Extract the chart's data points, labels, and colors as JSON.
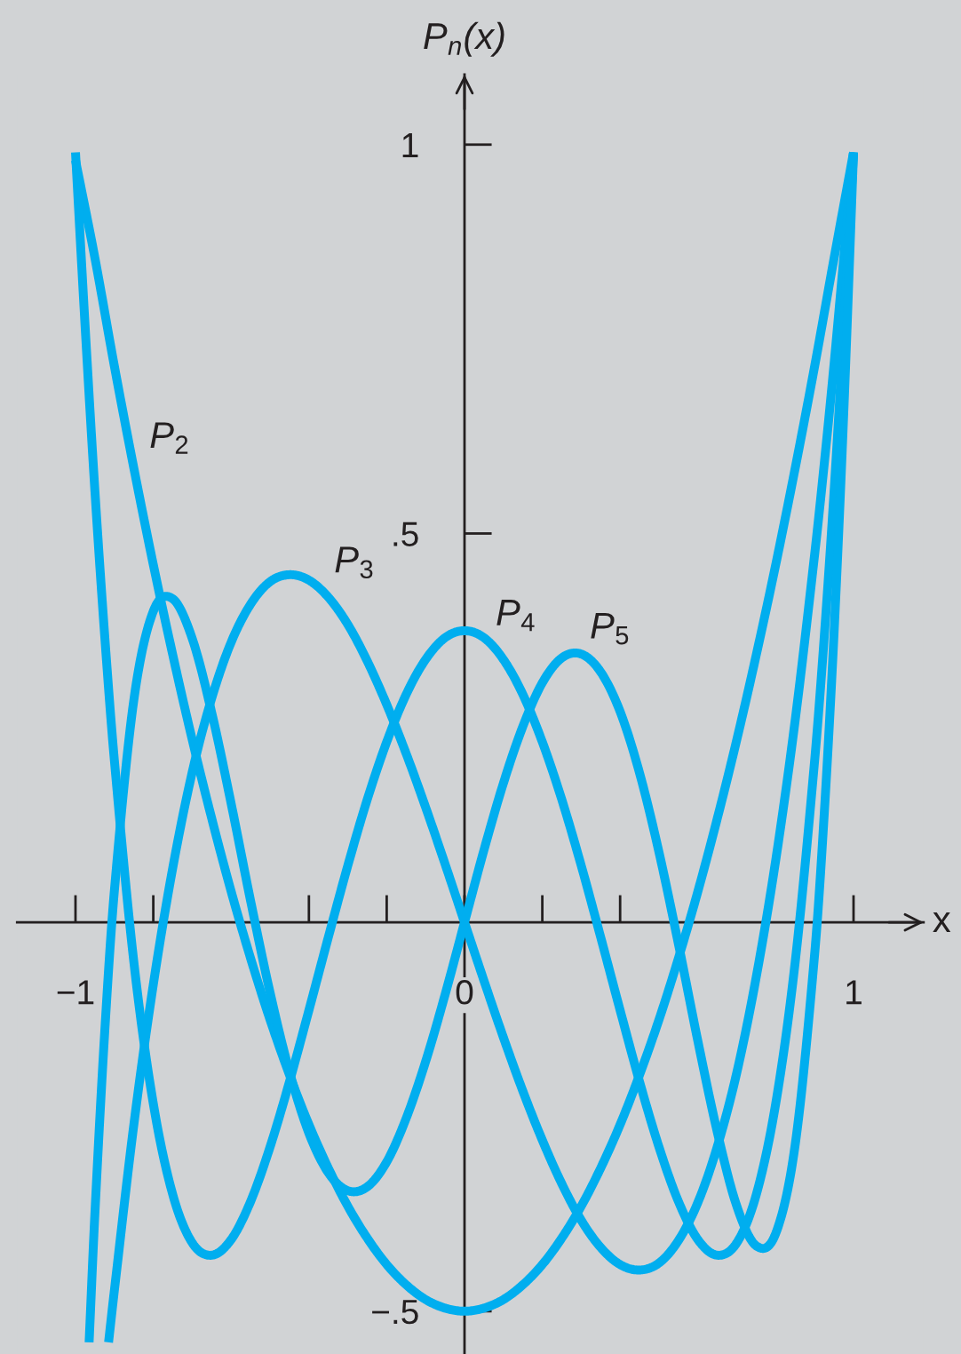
{
  "chart_data": {
    "type": "line",
    "xlabel": "x",
    "ylabel": "P$_{n}$(x)",
    "line_style": "solid",
    "xlim": [
      -1.15,
      1.18
    ],
    "ylim": [
      -0.555,
      1.09
    ],
    "xticks": [
      {
        "value": -1,
        "label": "−1"
      },
      {
        "value": -0.8,
        "label": null
      },
      {
        "value": -0.4,
        "label": null
      },
      {
        "value": -0.2,
        "label": null
      },
      0,
      {
        "value": 0.2,
        "label": null
      },
      {
        "value": 0.4,
        "label": null
      },
      1
    ],
    "yticks": [
      {
        "value": -0.5,
        "label": "−.5"
      },
      {
        "value": 0.5,
        "label": ".5"
      },
      1
    ],
    "series": [
      {
        "name": "P$_{2}$",
        "color": "#00aeef",
        "x": [
          -1,
          -0.95,
          -0.9,
          -0.85,
          -0.8,
          -0.75,
          -0.7,
          -0.65,
          -0.6,
          -0.55,
          -0.5,
          -0.45,
          -0.4,
          -0.35,
          -0.3,
          -0.25,
          -0.2,
          -0.15,
          -0.1,
          -0.05,
          0,
          0.05,
          0.1,
          0.15,
          0.2,
          0.25,
          0.3,
          0.35,
          0.4,
          0.45,
          0.5,
          0.55,
          0.6,
          0.65,
          0.7,
          0.75,
          0.8,
          0.85,
          0.9,
          0.95,
          1
        ],
        "values": [
          0.98,
          0.854,
          0.715,
          0.584,
          0.46,
          0.344,
          0.235,
          0.134,
          0.04,
          -0.046,
          -0.125,
          -0.196,
          -0.26,
          -0.316,
          -0.365,
          -0.406,
          -0.44,
          -0.466,
          -0.485,
          -0.496,
          -0.5,
          -0.496,
          -0.485,
          -0.466,
          -0.44,
          -0.406,
          -0.365,
          -0.316,
          -0.26,
          -0.196,
          -0.125,
          -0.046,
          0.04,
          0.134,
          0.235,
          0.344,
          0.46,
          0.584,
          0.715,
          0.854,
          0.99
        ]
      },
      {
        "name": "P$_{3}$",
        "color": "#00aeef",
        "x": [
          -0.915,
          -0.9,
          -0.85,
          -0.8,
          -0.75,
          -0.7,
          -0.65,
          -0.6,
          -0.55,
          -0.5,
          -0.45,
          -0.4,
          -0.35,
          -0.3,
          -0.25,
          -0.2,
          -0.15,
          -0.1,
          -0.05,
          0,
          0.05,
          0.1,
          0.15,
          0.2,
          0.25,
          0.3,
          0.35,
          0.4,
          0.45,
          0.5,
          0.55,
          0.6,
          0.65,
          0.7,
          0.75,
          0.8,
          0.85,
          0.9,
          0.925,
          0.95,
          0.975,
          1
        ],
        "values": [
          -0.54,
          -0.473,
          -0.26,
          -0.08,
          0.07,
          0.193,
          0.288,
          0.36,
          0.409,
          0.438,
          0.447,
          0.44,
          0.418,
          0.383,
          0.336,
          0.28,
          0.217,
          0.148,
          0.075,
          0,
          -0.075,
          -0.148,
          -0.217,
          -0.28,
          -0.336,
          -0.383,
          -0.418,
          -0.44,
          -0.447,
          -0.438,
          -0.409,
          -0.36,
          -0.288,
          -0.193,
          -0.07,
          0.08,
          0.26,
          0.473,
          0.591,
          0.718,
          0.855,
          0.99
        ]
      },
      {
        "name": "P$_{4}$",
        "color": "#00aeef",
        "x": [
          -1,
          -0.975,
          -0.95,
          -0.925,
          -0.9,
          -0.85,
          -0.8,
          -0.75,
          -0.7,
          -0.65,
          -0.6,
          -0.55,
          -0.5,
          -0.45,
          -0.4,
          -0.35,
          -0.3,
          -0.25,
          -0.2,
          -0.15,
          -0.1,
          -0.05,
          0,
          0.05,
          0.1,
          0.15,
          0.2,
          0.25,
          0.3,
          0.35,
          0.4,
          0.45,
          0.5,
          0.55,
          0.6,
          0.65,
          0.7,
          0.75,
          0.8,
          0.85,
          0.9,
          0.925,
          0.95,
          0.975,
          1
        ],
        "values": [
          0.99,
          0.764,
          0.554,
          0.369,
          0.208,
          -0.051,
          -0.233,
          -0.35,
          -0.412,
          -0.428,
          -0.408,
          -0.359,
          -0.289,
          -0.205,
          -0.113,
          -0.019,
          0.073,
          0.158,
          0.232,
          0.293,
          0.338,
          0.366,
          0.375,
          0.366,
          0.338,
          0.293,
          0.232,
          0.158,
          0.073,
          -0.019,
          -0.113,
          -0.205,
          -0.289,
          -0.359,
          -0.408,
          -0.428,
          -0.412,
          -0.35,
          -0.233,
          -0.051,
          0.208,
          0.369,
          0.554,
          0.764,
          0.99
        ]
      },
      {
        "name": "P$_{5}$",
        "color": "#00aeef",
        "x": [
          -0.965,
          -0.95,
          -0.925,
          -0.9,
          -0.85,
          -0.8,
          -0.75,
          -0.7,
          -0.65,
          -0.6,
          -0.55,
          -0.5,
          -0.45,
          -0.4,
          -0.35,
          -0.3,
          -0.25,
          -0.2,
          -0.15,
          -0.1,
          -0.05,
          0,
          0.05,
          0.1,
          0.15,
          0.2,
          0.25,
          0.3,
          0.35,
          0.4,
          0.45,
          0.5,
          0.55,
          0.6,
          0.65,
          0.7,
          0.75,
          0.8,
          0.85,
          0.9,
          0.925,
          0.95,
          0.975,
          1
        ],
        "values": [
          -0.54,
          -0.373,
          -0.142,
          0.041,
          0.286,
          0.4,
          0.416,
          0.365,
          0.27,
          0.153,
          0.028,
          -0.09,
          -0.192,
          -0.271,
          -0.322,
          -0.345,
          -0.34,
          -0.308,
          -0.252,
          -0.179,
          -0.093,
          0,
          0.093,
          0.179,
          0.252,
          0.308,
          0.34,
          0.345,
          0.322,
          0.271,
          0.192,
          0.09,
          -0.028,
          -0.153,
          -0.27,
          -0.365,
          -0.416,
          -0.4,
          -0.286,
          -0.041,
          0.142,
          0.373,
          0.657,
          0.99
        ]
      }
    ]
  }
}
